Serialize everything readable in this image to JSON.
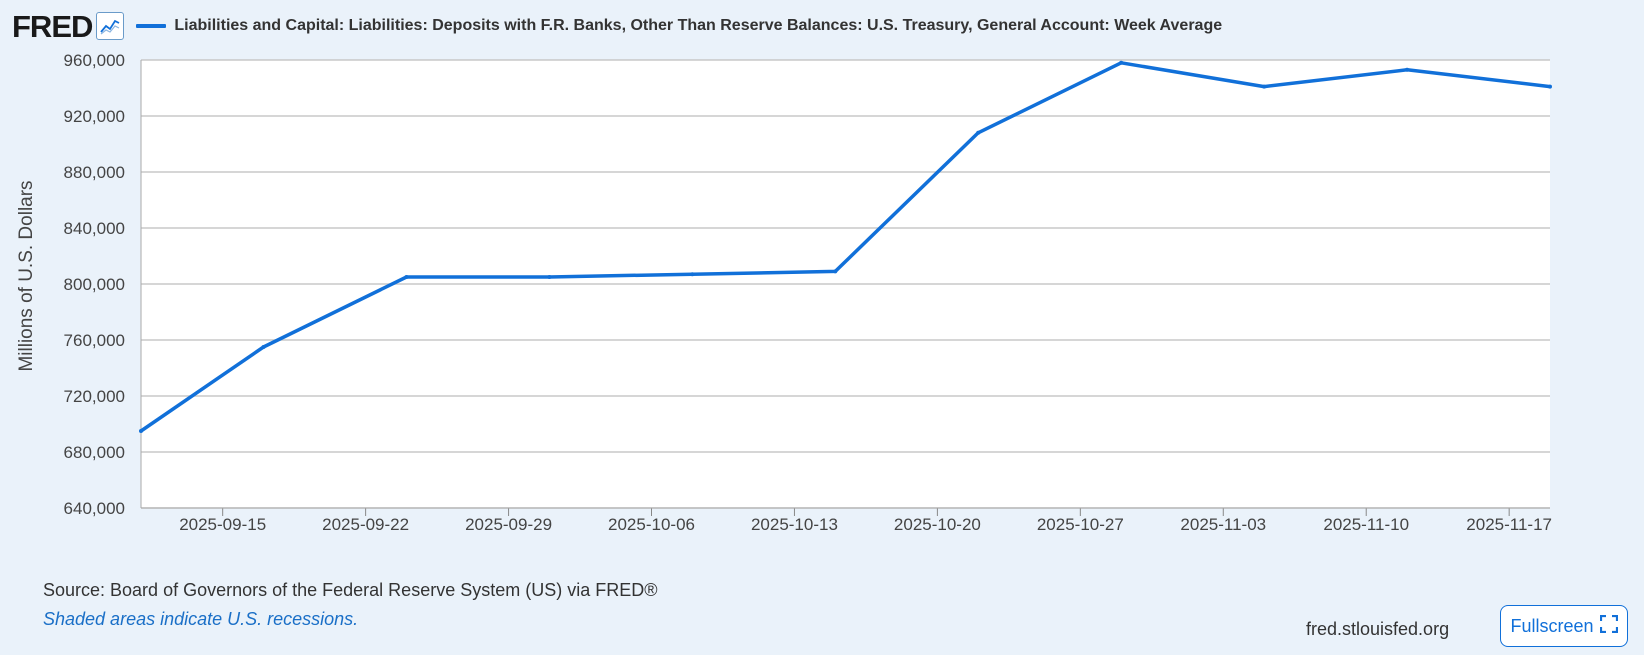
{
  "header": {
    "logo_text": "FRED",
    "logo_icon": "line-chart-icon",
    "series_label": "Liabilities and Capital: Liabilities: Deposits with F.R. Banks, Other Than Reserve Balances: U.S. Treasury, General Account: Week Average"
  },
  "footer": {
    "source": "Source: Board of Governors of the Federal Reserve System (US) via FRED®",
    "note": "Shaded areas indicate U.S. recessions.",
    "site": "fred.stlouisfed.org",
    "fullscreen_label": "Fullscreen",
    "fullscreen_icon": "expand-icon"
  },
  "colors": {
    "series": "#1170d9",
    "background": "#eaf2fa",
    "plot": "#ffffff",
    "grid": "#c8c8c8"
  },
  "chart_data": {
    "type": "line",
    "ylabel": "Millions of U.S. Dollars",
    "ylim": [
      640000,
      960000
    ],
    "yticks": [
      640000,
      680000,
      720000,
      760000,
      800000,
      840000,
      880000,
      920000,
      960000
    ],
    "ytick_labels": [
      "640,000",
      "680,000",
      "720,000",
      "760,000",
      "800,000",
      "840,000",
      "880,000",
      "920,000",
      "960,000"
    ],
    "xlim": [
      "2025-09-11",
      "2025-11-19"
    ],
    "xticks": [
      "2025-09-15",
      "2025-09-22",
      "2025-09-29",
      "2025-10-06",
      "2025-10-13",
      "2025-10-20",
      "2025-10-27",
      "2025-11-03",
      "2025-11-10",
      "2025-11-17"
    ],
    "grid": true,
    "series": [
      {
        "name": "Liabilities and Capital: Liabilities: Deposits with F.R. Banks, Other Than Reserve Balances: U.S. Treasury, General Account: Week Average",
        "x": [
          "2025-09-11",
          "2025-09-17",
          "2025-09-24",
          "2025-10-01",
          "2025-10-08",
          "2025-10-15",
          "2025-10-22",
          "2025-10-29",
          "2025-11-05",
          "2025-11-12",
          "2025-11-19"
        ],
        "y": [
          695000,
          755000,
          805000,
          805000,
          807000,
          809000,
          908000,
          958000,
          941000,
          953000,
          941000
        ]
      }
    ]
  }
}
